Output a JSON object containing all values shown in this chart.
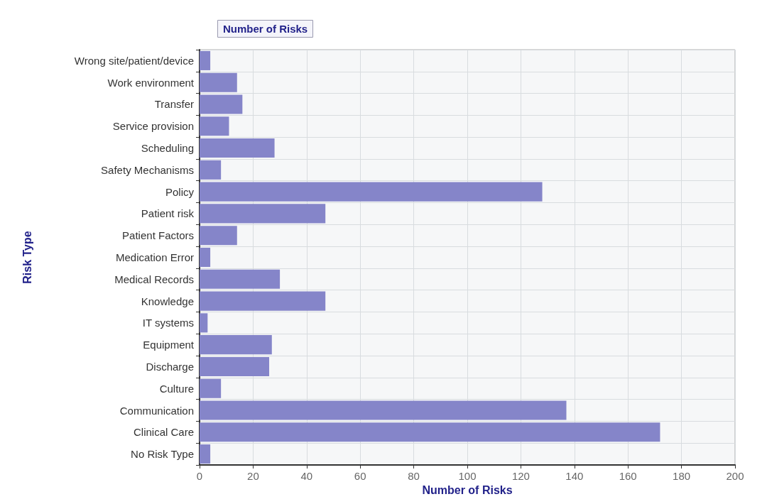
{
  "chart_data": {
    "type": "bar",
    "orientation": "horizontal",
    "title": "Number of Risks",
    "xlabel": "Number of Risks",
    "ylabel": "Risk Type",
    "categories": [
      "Wrong site/patient/device",
      "Work environment",
      "Transfer",
      "Service provision",
      "Scheduling",
      "Safety Mechanisms",
      "Policy",
      "Patient risk",
      "Patient Factors",
      "Medication Error",
      "Medical Records",
      "Knowledge",
      "IT systems",
      "Equipment",
      "Discharge",
      "Culture",
      "Communication",
      "Clinical Care",
      "No Risk Type"
    ],
    "values": [
      4,
      14,
      16,
      11,
      28,
      8,
      128,
      47,
      14,
      4,
      30,
      47,
      3,
      27,
      26,
      8,
      137,
      172,
      4
    ],
    "color": "#8585c9",
    "xlim": [
      0,
      200
    ],
    "xticks": [
      0,
      20,
      40,
      60,
      80,
      100,
      120,
      140,
      160,
      180,
      200
    ],
    "grid": true
  }
}
